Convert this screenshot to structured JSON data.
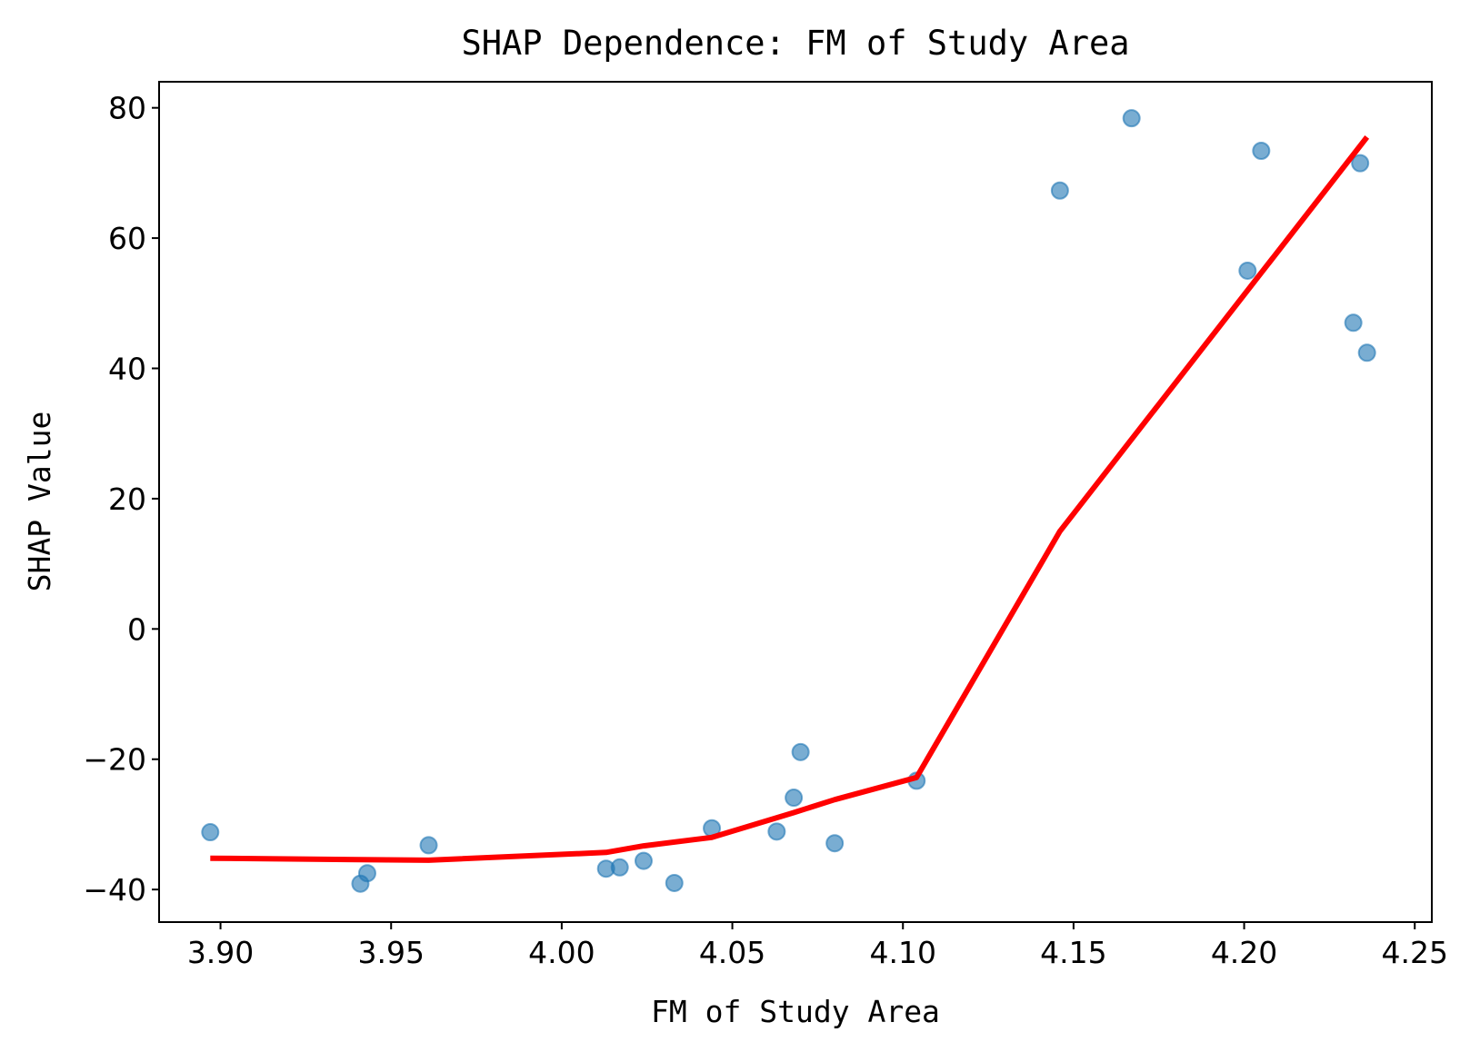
{
  "chart_data": {
    "type": "scatter",
    "title": "SHAP Dependence: FM of Study Area",
    "xlabel": "FM of Study Area",
    "ylabel": "SHAP Value",
    "xlim": [
      3.882,
      4.255
    ],
    "ylim": [
      -45,
      84
    ],
    "xticks": [
      3.9,
      3.95,
      4.0,
      4.05,
      4.1,
      4.15,
      4.2,
      4.25
    ],
    "xtick_labels": [
      "3.90",
      "3.95",
      "4.00",
      "4.05",
      "4.10",
      "4.15",
      "4.20",
      "4.25"
    ],
    "yticks": [
      -40,
      -20,
      0,
      20,
      40,
      60,
      80
    ],
    "ytick_labels": [
      "−40",
      "−20",
      "0",
      "20",
      "40",
      "60",
      "80"
    ],
    "grid": false,
    "legend": "none",
    "series": [
      {
        "kind": "scatter",
        "color": "#1f77b4",
        "points": [
          {
            "x": 3.897,
            "y": -31.2
          },
          {
            "x": 3.941,
            "y": -39.1
          },
          {
            "x": 3.943,
            "y": -37.5
          },
          {
            "x": 3.961,
            "y": -33.2
          },
          {
            "x": 4.013,
            "y": -36.8
          },
          {
            "x": 4.017,
            "y": -36.6
          },
          {
            "x": 4.024,
            "y": -35.6
          },
          {
            "x": 4.033,
            "y": -39.0
          },
          {
            "x": 4.044,
            "y": -30.6
          },
          {
            "x": 4.063,
            "y": -31.1
          },
          {
            "x": 4.068,
            "y": -25.9
          },
          {
            "x": 4.07,
            "y": -18.9
          },
          {
            "x": 4.08,
            "y": -32.9
          },
          {
            "x": 4.104,
            "y": -23.3
          },
          {
            "x": 4.146,
            "y": 67.3
          },
          {
            "x": 4.167,
            "y": 78.4
          },
          {
            "x": 4.201,
            "y": 55.0
          },
          {
            "x": 4.205,
            "y": 73.4
          },
          {
            "x": 4.232,
            "y": 47.0
          },
          {
            "x": 4.234,
            "y": 71.5
          },
          {
            "x": 4.236,
            "y": 42.4
          }
        ]
      },
      {
        "kind": "line",
        "color": "#ff0000",
        "points": [
          {
            "x": 3.897,
            "y": -35.2
          },
          {
            "x": 3.961,
            "y": -35.5
          },
          {
            "x": 4.013,
            "y": -34.3
          },
          {
            "x": 4.024,
            "y": -33.3
          },
          {
            "x": 4.044,
            "y": -32.0
          },
          {
            "x": 4.068,
            "y": -28.2
          },
          {
            "x": 4.08,
            "y": -26.2
          },
          {
            "x": 4.104,
            "y": -22.8
          },
          {
            "x": 4.146,
            "y": 15.0
          },
          {
            "x": 4.236,
            "y": 75.5
          }
        ]
      }
    ]
  }
}
